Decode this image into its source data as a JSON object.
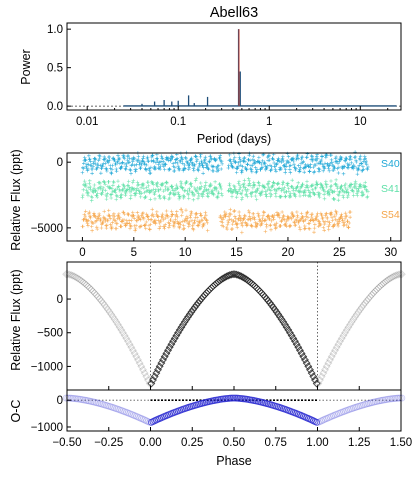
{
  "chart_data": [
    {
      "type": "line",
      "title": "Abell63",
      "xlabel": "Period (days)",
      "ylabel": "Power",
      "xscale": "log",
      "xlim": [
        0.006,
        28
      ],
      "ylim": [
        -0.05,
        1.08
      ],
      "x_ticks": [
        "0.01",
        "0.1",
        "1",
        "10"
      ],
      "y_ticks": [
        "0.0",
        "0.5",
        "1.0"
      ],
      "baseline": 0.0,
      "grid": false,
      "series": [
        {
          "color": "#1f4e79",
          "peaks": [
            [
              0.04,
              0.03
            ],
            [
              0.055,
              0.06
            ],
            [
              0.07,
              0.08
            ],
            [
              0.085,
              0.06
            ],
            [
              0.1,
              0.07
            ],
            [
              0.13,
              0.14
            ],
            [
              0.15,
              0.04
            ],
            [
              0.21,
              0.12
            ],
            [
              0.46,
              1.0
            ],
            [
              0.48,
              0.45
            ]
          ]
        },
        {
          "color": "#c0392b",
          "peaks": [
            [
              0.465,
              1.0
            ]
          ]
        }
      ]
    },
    {
      "type": "scatter",
      "xlabel": "",
      "ylabel": "Relative Flux (ppt)",
      "xlim": [
        -1.5,
        31
      ],
      "ylim": [
        -6000,
        700
      ],
      "x_ticks": [
        "0",
        "5",
        "10",
        "15",
        "20",
        "25",
        "30"
      ],
      "y_ticks": [
        "0",
        "−5000"
      ],
      "grid": false,
      "legend": "right",
      "series": [
        {
          "name": "S40",
          "color": "#1ea7d6",
          "offset": 0,
          "segments": [
            [
              0,
              13.6
            ],
            [
              14.2,
              27.8
            ]
          ],
          "amplitude": 450,
          "scatter": 380
        },
        {
          "name": "S41",
          "color": "#5fe0a8",
          "offset": -2000,
          "segments": [
            [
              0,
              13.6
            ],
            [
              14.2,
              27.8
            ]
          ],
          "amplitude": 450,
          "scatter": 380
        },
        {
          "name": "S54",
          "color": "#f5a54a",
          "offset": -4300,
          "segments": [
            [
              0,
              12.2
            ],
            [
              13.4,
              26.1
            ]
          ],
          "amplitude": 450,
          "scatter": 380
        }
      ]
    },
    {
      "type": "line",
      "xlabel": "",
      "ylabel": "Relative Flux (ppt)",
      "xlim": [
        -0.5,
        1.5
      ],
      "ylim": [
        -1350,
        550
      ],
      "x_ticks": [
        "−0.50",
        "−0.25",
        "0.00",
        "0.25",
        "0.50",
        "0.75",
        "1.00",
        "1.25",
        "1.50"
      ],
      "y_ticks": [
        "0",
        "−500",
        "−1000"
      ],
      "phase_markers": [
        0.0,
        1.0
      ],
      "grid": false,
      "profile": {
        "amplitude": 1650,
        "center": 0.5,
        "offset": -1280,
        "exponent": 1.6
      },
      "series": [
        {
          "color": "#222222",
          "markers": "diamond",
          "n_points": 100
        }
      ]
    },
    {
      "type": "line",
      "xlabel": "Phase",
      "ylabel": "O-C",
      "xlim": [
        -0.5,
        1.5
      ],
      "ylim": [
        -1150,
        380
      ],
      "x_ticks": [
        "−0.50",
        "−0.25",
        "0.00",
        "0.25",
        "0.50",
        "0.75",
        "1.00",
        "1.25",
        "1.50"
      ],
      "y_ticks": [
        "0",
        "−1000"
      ],
      "grid": false,
      "profile": {
        "amplitude": 1150,
        "center": 0.5,
        "offset": -1050,
        "exponent": 1.6,
        "scale": 0.8
      },
      "series": [
        {
          "color": "#2a2ad0",
          "markers": "circle",
          "n_points": 100
        }
      ]
    }
  ]
}
